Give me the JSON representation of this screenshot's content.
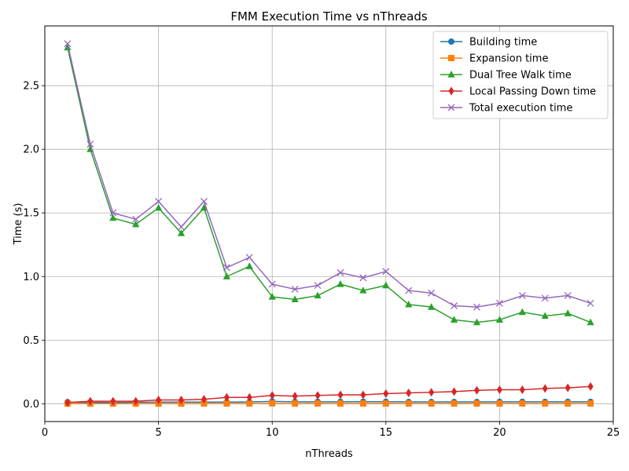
{
  "chart_data": {
    "type": "line",
    "title": "FMM Execution Time vs nThreads",
    "xlabel": "nThreads",
    "ylabel": "Time (s)",
    "xlim": [
      0,
      25
    ],
    "ylim": [
      -0.14,
      2.97
    ],
    "xticks": [
      0,
      5,
      10,
      15,
      20,
      25
    ],
    "yticks": [
      0.0,
      0.5,
      1.0,
      1.5,
      2.0,
      2.5
    ],
    "xtick_labels": [
      "0",
      "5",
      "10",
      "15",
      "20",
      "25"
    ],
    "ytick_labels": [
      "0.0",
      "0.5",
      "1.0",
      "1.5",
      "2.0",
      "2.5"
    ],
    "grid": true,
    "legend_position": "top-right",
    "x": [
      1,
      2,
      3,
      4,
      5,
      6,
      7,
      8,
      9,
      10,
      11,
      12,
      13,
      14,
      15,
      16,
      17,
      18,
      19,
      20,
      21,
      22,
      23,
      24
    ],
    "series": [
      {
        "name": "Building time",
        "color": "#1f77b4",
        "marker": "circle",
        "values": [
          0.012,
          0.01,
          0.01,
          0.011,
          0.012,
          0.013,
          0.013,
          0.013,
          0.014,
          0.018,
          0.015,
          0.015,
          0.015,
          0.016,
          0.016,
          0.014,
          0.014,
          0.014,
          0.014,
          0.015,
          0.015,
          0.015,
          0.015,
          0.015
        ]
      },
      {
        "name": "Expansion time",
        "color": "#ff7f0e",
        "marker": "square",
        "values": [
          0.001,
          0.001,
          0.001,
          0.001,
          0.001,
          0.001,
          0.002,
          0.002,
          0.002,
          0.003,
          0.002,
          0.002,
          0.002,
          0.002,
          0.002,
          0.002,
          0.002,
          0.002,
          0.002,
          0.002,
          0.002,
          0.002,
          0.002,
          0.002
        ]
      },
      {
        "name": "Dual Tree Walk time",
        "color": "#2ca02c",
        "marker": "triangle",
        "values": [
          2.8,
          2.0,
          1.46,
          1.41,
          1.54,
          1.34,
          1.54,
          1.0,
          1.08,
          0.84,
          0.82,
          0.85,
          0.94,
          0.89,
          0.93,
          0.78,
          0.76,
          0.66,
          0.64,
          0.66,
          0.72,
          0.69,
          0.71,
          0.64
        ]
      },
      {
        "name": "Local Passing Down time",
        "color": "#d62728",
        "marker": "diamond",
        "values": [
          0.01,
          0.02,
          0.02,
          0.02,
          0.03,
          0.03,
          0.035,
          0.05,
          0.05,
          0.065,
          0.06,
          0.065,
          0.07,
          0.07,
          0.08,
          0.085,
          0.09,
          0.095,
          0.105,
          0.11,
          0.11,
          0.12,
          0.125,
          0.135
        ]
      },
      {
        "name": "Total execution time",
        "color": "#9467bd",
        "marker": "x",
        "values": [
          2.83,
          2.04,
          1.5,
          1.45,
          1.59,
          1.39,
          1.59,
          1.07,
          1.15,
          0.94,
          0.9,
          0.93,
          1.03,
          0.99,
          1.04,
          0.89,
          0.87,
          0.77,
          0.76,
          0.79,
          0.85,
          0.83,
          0.85,
          0.79
        ]
      }
    ]
  }
}
